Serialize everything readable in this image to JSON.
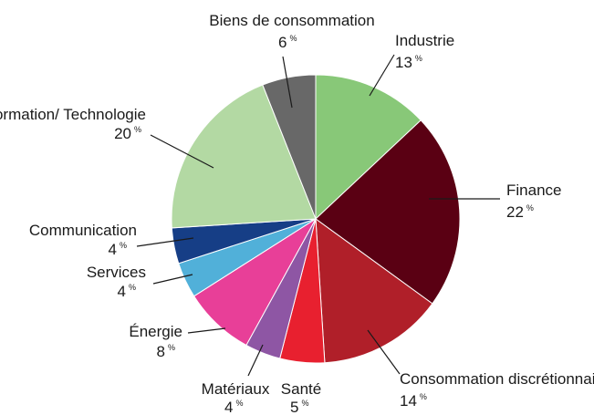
{
  "chart_data": {
    "type": "pie",
    "title": "",
    "unit": "%",
    "slices": [
      {
        "label": "Industrie",
        "value": 13,
        "color": "#88c878"
      },
      {
        "label": "Finance",
        "value": 22,
        "color": "#5a0013"
      },
      {
        "label": "Consommation discrétionnaire",
        "value": 14,
        "color": "#b01f29"
      },
      {
        "label": "Santé",
        "value": 5,
        "color": "#e8202f"
      },
      {
        "label": "Matériaux",
        "value": 4,
        "color": "#8e56a4"
      },
      {
        "label": "Énergie",
        "value": 8,
        "color": "#e83f98"
      },
      {
        "label": "Services",
        "value": 4,
        "color": "#51b0d9"
      },
      {
        "label": "Communication",
        "value": 4,
        "color": "#163e86"
      },
      {
        "label": "Information/ Technologie",
        "value": 20,
        "color": "#b3d9a3"
      },
      {
        "label": "Biens de consommation",
        "value": 6,
        "color": "#686868"
      }
    ]
  }
}
